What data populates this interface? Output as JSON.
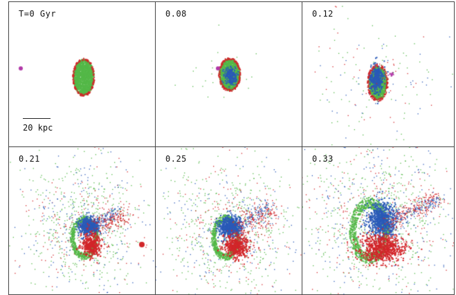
{
  "figure": {
    "panels": [
      {
        "label": "T=0 Gyr"
      },
      {
        "label": "0.08"
      },
      {
        "label": "0.12"
      },
      {
        "label": "0.21"
      },
      {
        "label": "0.25"
      },
      {
        "label": "0.33"
      }
    ],
    "scale_bar": {
      "label": "20 kpc"
    }
  },
  "colors": {
    "green": "#54b848",
    "blue": "#2a5ab8",
    "red": "#d2262a",
    "magenta": "#b23aa8",
    "border": "#444444"
  }
}
